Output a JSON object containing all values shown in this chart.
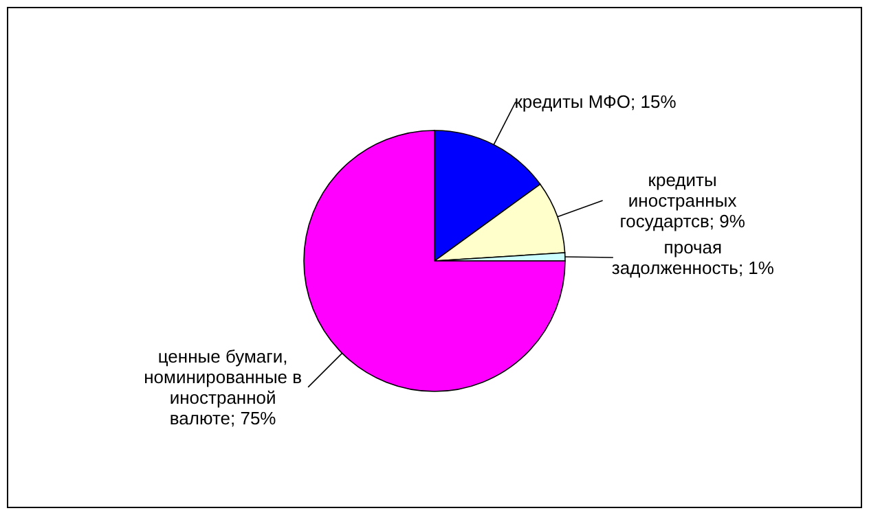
{
  "chart_data": {
    "type": "pie",
    "categories": [
      "кредиты МФО",
      "кредиты иностранных государтсв",
      "прочая задолженность",
      "ценные бумаги, номинированные в иностранной валюте"
    ],
    "values": [
      15,
      9,
      1,
      75
    ],
    "value_labels": [
      "15%",
      "9%",
      "1%",
      "75%"
    ],
    "colors": [
      "#0000ff",
      "#ffffcc",
      "#ccffff",
      "#ff00ff"
    ]
  }
}
